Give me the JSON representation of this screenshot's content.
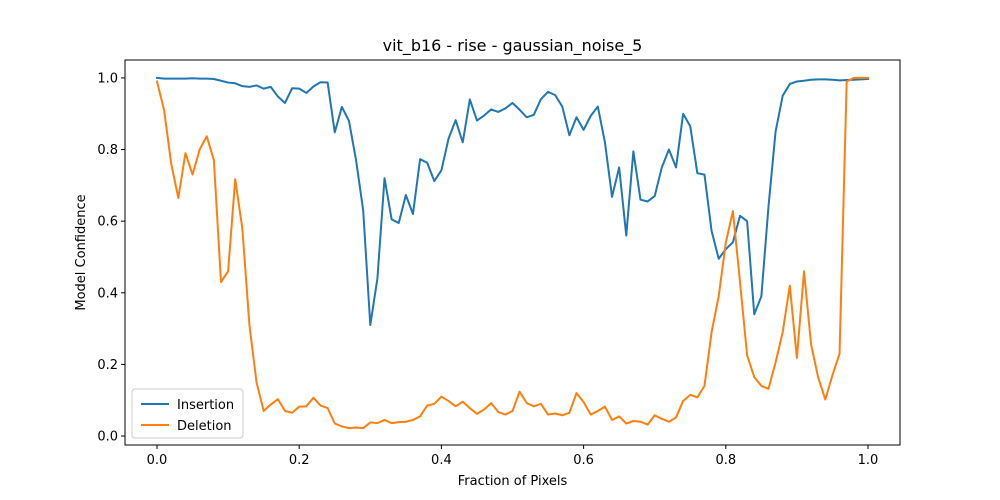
{
  "chart_data": {
    "type": "line",
    "title": "vit_b16 - rise - gaussian_noise_5",
    "xlabel": "Fraction of Pixels",
    "ylabel": "Model Confidence",
    "xlim": [
      -0.045,
      1.045
    ],
    "ylim": [
      -0.025,
      1.05
    ],
    "xticks": [
      0.0,
      0.2,
      0.4,
      0.6,
      0.8,
      1.0
    ],
    "xtick_labels": [
      "0.0",
      "0.2",
      "0.4",
      "0.6",
      "0.8",
      "1.0"
    ],
    "yticks": [
      0.0,
      0.2,
      0.4,
      0.6,
      0.8,
      1.0
    ],
    "ytick_labels": [
      "0.0",
      "0.2",
      "0.4",
      "0.6",
      "0.8",
      "1.0"
    ],
    "grid": false,
    "legend_position": "lower-left",
    "series": [
      {
        "name": "Insertion",
        "color": "#1f77b4",
        "x": [
          0,
          0.01,
          0.02,
          0.03,
          0.04,
          0.05,
          0.06,
          0.07,
          0.08,
          0.09,
          0.1,
          0.11,
          0.12,
          0.13,
          0.14,
          0.15,
          0.16,
          0.17,
          0.18,
          0.19,
          0.2,
          0.21,
          0.22,
          0.23,
          0.24,
          0.25,
          0.26,
          0.27,
          0.28,
          0.29,
          0.3,
          0.31,
          0.32,
          0.33,
          0.34,
          0.35,
          0.36,
          0.37,
          0.38,
          0.39,
          0.4,
          0.41,
          0.42,
          0.43,
          0.44,
          0.45,
          0.46,
          0.47,
          0.48,
          0.49,
          0.5,
          0.51,
          0.52,
          0.53,
          0.54,
          0.55,
          0.56,
          0.57,
          0.58,
          0.59,
          0.6,
          0.61,
          0.62,
          0.63,
          0.64,
          0.65,
          0.66,
          0.67,
          0.68,
          0.69,
          0.7,
          0.71,
          0.72,
          0.73,
          0.74,
          0.75,
          0.76,
          0.77,
          0.78,
          0.79,
          0.8,
          0.81,
          0.82,
          0.83,
          0.84,
          0.85,
          0.86,
          0.87,
          0.88,
          0.89,
          0.9,
          0.91,
          0.92,
          0.93,
          0.94,
          0.95,
          0.96,
          0.97,
          0.98,
          0.99,
          1.0
        ],
        "y": [
          1.0,
          0.998,
          0.998,
          0.998,
          0.998,
          0.999,
          0.998,
          0.998,
          0.997,
          0.992,
          0.987,
          0.985,
          0.977,
          0.975,
          0.979,
          0.97,
          0.975,
          0.948,
          0.93,
          0.971,
          0.97,
          0.958,
          0.976,
          0.988,
          0.987,
          0.848,
          0.919,
          0.88,
          0.77,
          0.63,
          0.31,
          0.44,
          0.72,
          0.605,
          0.595,
          0.673,
          0.62,
          0.773,
          0.763,
          0.712,
          0.742,
          0.83,
          0.882,
          0.82,
          0.94,
          0.881,
          0.895,
          0.912,
          0.905,
          0.915,
          0.93,
          0.911,
          0.89,
          0.897,
          0.941,
          0.961,
          0.952,
          0.92,
          0.84,
          0.89,
          0.855,
          0.894,
          0.92,
          0.82,
          0.668,
          0.75,
          0.56,
          0.795,
          0.66,
          0.655,
          0.67,
          0.75,
          0.8,
          0.75,
          0.9,
          0.865,
          0.734,
          0.73,
          0.573,
          0.495,
          0.522,
          0.541,
          0.615,
          0.6,
          0.34,
          0.39,
          0.64,
          0.85,
          0.95,
          0.983,
          0.99,
          0.992,
          0.995,
          0.996,
          0.996,
          0.995,
          0.993,
          0.994,
          0.995,
          0.996,
          0.997
        ]
      },
      {
        "name": "Deletion",
        "color": "#ff7f0e",
        "x": [
          0,
          0.01,
          0.02,
          0.03,
          0.04,
          0.05,
          0.06,
          0.07,
          0.08,
          0.09,
          0.1,
          0.11,
          0.12,
          0.13,
          0.14,
          0.15,
          0.16,
          0.17,
          0.18,
          0.19,
          0.2,
          0.21,
          0.22,
          0.23,
          0.24,
          0.25,
          0.26,
          0.27,
          0.28,
          0.29,
          0.3,
          0.31,
          0.32,
          0.33,
          0.34,
          0.35,
          0.36,
          0.37,
          0.38,
          0.39,
          0.4,
          0.41,
          0.42,
          0.43,
          0.44,
          0.45,
          0.46,
          0.47,
          0.48,
          0.49,
          0.5,
          0.51,
          0.52,
          0.53,
          0.54,
          0.55,
          0.56,
          0.57,
          0.58,
          0.59,
          0.6,
          0.61,
          0.62,
          0.63,
          0.64,
          0.65,
          0.66,
          0.67,
          0.68,
          0.69,
          0.7,
          0.71,
          0.72,
          0.73,
          0.74,
          0.75,
          0.76,
          0.77,
          0.78,
          0.79,
          0.8,
          0.81,
          0.82,
          0.83,
          0.84,
          0.85,
          0.86,
          0.87,
          0.88,
          0.89,
          0.9,
          0.91,
          0.92,
          0.93,
          0.94,
          0.95,
          0.96,
          0.97,
          0.98,
          0.99,
          1.0
        ],
        "y": [
          0.99,
          0.91,
          0.76,
          0.665,
          0.79,
          0.73,
          0.8,
          0.837,
          0.77,
          0.43,
          0.46,
          0.717,
          0.58,
          0.31,
          0.15,
          0.07,
          0.088,
          0.103,
          0.07,
          0.065,
          0.082,
          0.083,
          0.107,
          0.085,
          0.078,
          0.035,
          0.027,
          0.022,
          0.024,
          0.022,
          0.038,
          0.036,
          0.045,
          0.036,
          0.039,
          0.04,
          0.045,
          0.055,
          0.085,
          0.09,
          0.11,
          0.098,
          0.083,
          0.096,
          0.078,
          0.062,
          0.074,
          0.092,
          0.067,
          0.06,
          0.07,
          0.124,
          0.092,
          0.083,
          0.09,
          0.06,
          0.063,
          0.058,
          0.065,
          0.12,
          0.095,
          0.06,
          0.07,
          0.082,
          0.045,
          0.055,
          0.035,
          0.042,
          0.04,
          0.032,
          0.058,
          0.048,
          0.04,
          0.052,
          0.098,
          0.115,
          0.108,
          0.14,
          0.29,
          0.39,
          0.54,
          0.628,
          0.43,
          0.225,
          0.165,
          0.14,
          0.132,
          0.205,
          0.29,
          0.42,
          0.218,
          0.46,
          0.255,
          0.163,
          0.102,
          0.17,
          0.23,
          0.99,
          1.0,
          1.0,
          1.0
        ]
      }
    ]
  }
}
